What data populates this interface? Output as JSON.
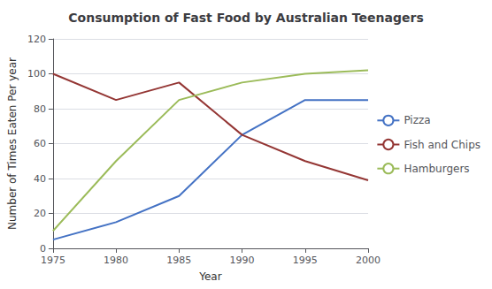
{
  "chart_data": {
    "type": "line",
    "title": "Consumption of Fast Food by Australian Teenagers",
    "xlabel": "Year",
    "ylabel": "Number of Times Eaten Per year",
    "x": [
      1975,
      1980,
      1985,
      1990,
      1995,
      2000
    ],
    "series": [
      {
        "name": "Pizza",
        "color": "#4472C4",
        "values": [
          5,
          15,
          30,
          65,
          85,
          85
        ]
      },
      {
        "name": "Fish and Chips",
        "color": "#943634",
        "values": [
          100,
          85,
          95,
          65,
          50,
          39
        ]
      },
      {
        "name": "Hamburgers",
        "color": "#9BBB59",
        "values": [
          10,
          50,
          85,
          95,
          100,
          102
        ]
      }
    ],
    "xlim": [
      1975,
      2000
    ],
    "xticks": [
      1975,
      1980,
      1985,
      1990,
      1995,
      2000
    ],
    "ylim": [
      0,
      120
    ],
    "yticks": [
      0,
      20,
      40,
      60,
      80,
      100,
      120
    ],
    "grid": true,
    "legend": "right"
  }
}
